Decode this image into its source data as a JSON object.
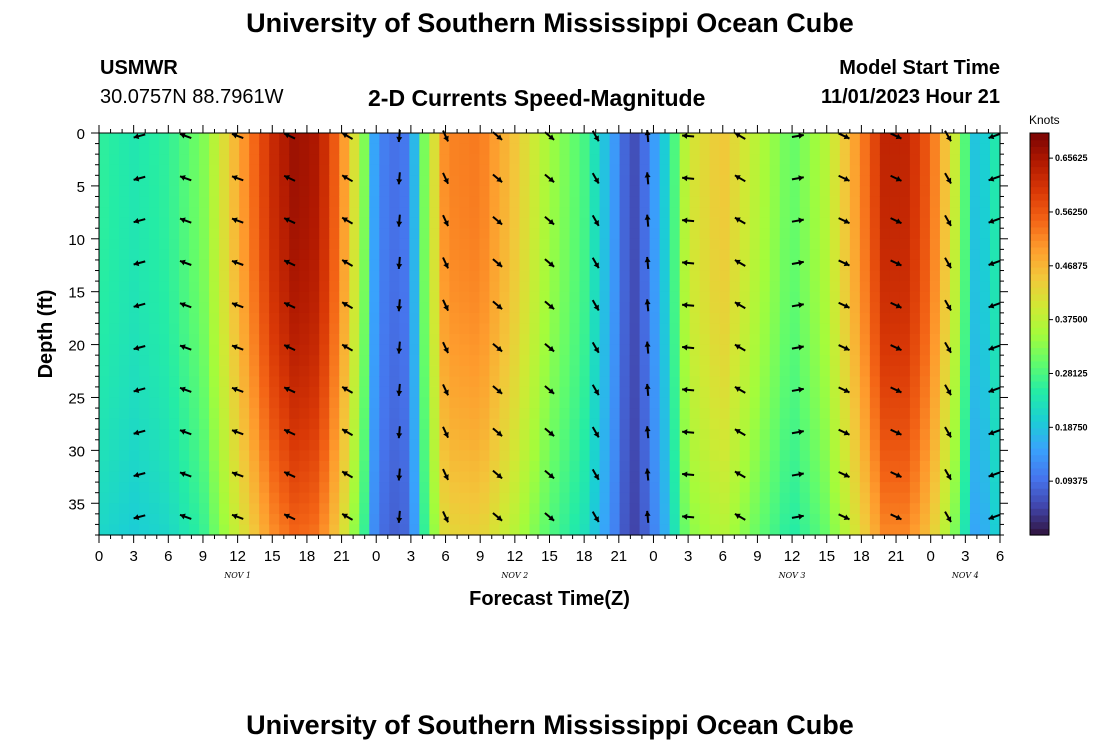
{
  "header": {
    "title": "University of Southern Mississippi Ocean Cube",
    "station": "USMWR",
    "coords": "30.0757N  88.7961W",
    "plot_title": "2-D Currents Speed-Magnitude",
    "model_start_label": "Model Start Time",
    "model_start_value": "11/01/2023 Hour 21"
  },
  "footer": {
    "title": "University of Southern Mississippi Ocean Cube"
  },
  "colors": {
    "background": "#ffffff",
    "text": "#000000",
    "arrow": "#000000",
    "colormap": [
      "#30123b",
      "#4145ab",
      "#4675ed",
      "#39a2fc",
      "#1bcfd4",
      "#24eca6",
      "#61fc6c",
      "#a4fc3b",
      "#d1e834",
      "#f3c63a",
      "#fe9b2d",
      "#f36315",
      "#d93806",
      "#b11901",
      "#7a0403"
    ]
  },
  "chart_data": {
    "type": "heatmap",
    "title": "2-D Currents Speed-Magnitude",
    "xlabel": "Forecast Time(Z)",
    "ylabel": "Depth (ft)",
    "x_tick_labels": [
      "0",
      "3",
      "6",
      "9",
      "12",
      "15",
      "18",
      "21",
      "0",
      "3",
      "6",
      "9",
      "12",
      "15",
      "18",
      "21",
      "0",
      "3",
      "6",
      "9",
      "12",
      "15",
      "18",
      "21",
      "0",
      "3",
      "6"
    ],
    "x_range_hours": [
      0,
      78
    ],
    "day_labels": [
      {
        "label": "NOV 1",
        "hour": 12
      },
      {
        "label": "NOV 2",
        "hour": 36
      },
      {
        "label": "NOV 3",
        "hour": 60
      },
      {
        "label": "NOV 4",
        "hour": 75
      }
    ],
    "y_ticks": [
      0,
      5,
      10,
      15,
      20,
      25,
      30,
      35
    ],
    "y_range": [
      0,
      38
    ],
    "y_inverted": true,
    "colorbar": {
      "unit": "Knots",
      "range": [
        0.0,
        0.7
      ],
      "tick_values": [
        0.65625,
        0.5625,
        0.46875,
        0.375,
        0.28125,
        0.1875,
        0.09375
      ],
      "tick_labels": [
        "0.65625",
        "0.56250",
        "0.46875",
        "0.37500",
        "0.28125",
        "0.18750",
        "0.09375"
      ]
    },
    "speed_profile": {
      "note": "surface speed (knots) vs forecast hour; speed decays slightly with depth",
      "hours": [
        0,
        3,
        6,
        9,
        12,
        15,
        17,
        19,
        21,
        23,
        24,
        26,
        27,
        28,
        30,
        33,
        36,
        39,
        42,
        45,
        46,
        47,
        49,
        51,
        54,
        57,
        60,
        63,
        66,
        68,
        70,
        72,
        74,
        76,
        78
      ],
      "speeds": [
        0.26,
        0.24,
        0.26,
        0.32,
        0.48,
        0.62,
        0.67,
        0.65,
        0.52,
        0.32,
        0.12,
        0.09,
        0.12,
        0.3,
        0.52,
        0.53,
        0.45,
        0.35,
        0.28,
        0.12,
        0.05,
        0.08,
        0.2,
        0.4,
        0.45,
        0.37,
        0.3,
        0.37,
        0.52,
        0.63,
        0.63,
        0.55,
        0.4,
        0.17,
        0.26
      ],
      "depth_decay": 0.18
    },
    "arrows": {
      "columns_hours": [
        3.5,
        7.5,
        12,
        16.5,
        21.5,
        26,
        30,
        34.5,
        39,
        43,
        47.5,
        51,
        55.5,
        60.5,
        64.5,
        69,
        73.5,
        77.5
      ],
      "direction_deg": [
        195,
        160,
        160,
        155,
        150,
        265,
        295,
        320,
        320,
        300,
        95,
        175,
        150,
        10,
        335,
        335,
        300,
        200
      ],
      "depth_rows": [
        0,
        4,
        8,
        12,
        16,
        20,
        24,
        28,
        32,
        36
      ]
    }
  }
}
